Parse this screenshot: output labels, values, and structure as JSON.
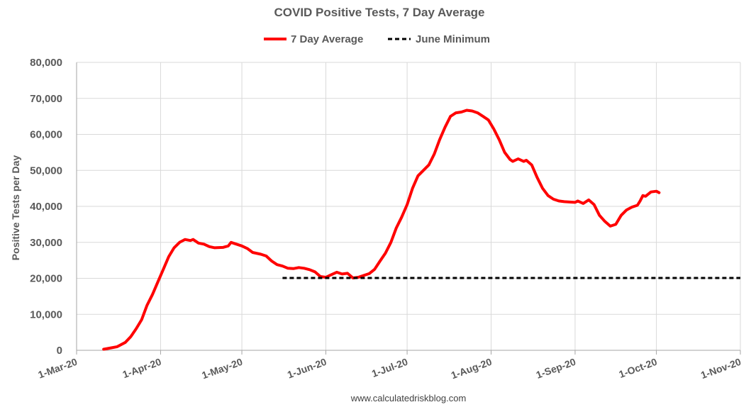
{
  "chart_data": {
    "type": "line",
    "title": "COVID Positive Tests, 7 Day Average",
    "ylabel": "Positive Tests per Day",
    "xlabel": "",
    "source": "www.calculatedriskblog.com",
    "ylim": [
      0,
      80000
    ],
    "yticks": [
      0,
      10000,
      20000,
      30000,
      40000,
      50000,
      60000,
      70000,
      80000
    ],
    "ytick_labels": [
      "0",
      "10,000",
      "20,000",
      "30,000",
      "40,000",
      "50,000",
      "60,000",
      "70,000",
      "80,000"
    ],
    "xlim": [
      "2020-03-01",
      "2020-11-01"
    ],
    "xticks": [
      "2020-03-01",
      "2020-04-01",
      "2020-05-01",
      "2020-06-01",
      "2020-07-01",
      "2020-08-01",
      "2020-09-01",
      "2020-10-01",
      "2020-11-01"
    ],
    "xtick_labels": [
      "1-Mar-20",
      "1-Apr-20",
      "1-May-20",
      "1-Jun-20",
      "1-Jul-20",
      "1-Aug-20",
      "1-Sep-20",
      "1-Oct-20",
      "1-Nov-20"
    ],
    "grid": true,
    "legend_position": "top",
    "series": [
      {
        "name": "7 Day Average",
        "color": "#ff0000",
        "style": "solid",
        "points": [
          [
            "2020-03-11",
            300
          ],
          [
            "2020-03-14",
            700
          ],
          [
            "2020-03-16",
            1000
          ],
          [
            "2020-03-19",
            2200
          ],
          [
            "2020-03-21",
            3800
          ],
          [
            "2020-03-23",
            6000
          ],
          [
            "2020-03-25",
            8500
          ],
          [
            "2020-03-27",
            12500
          ],
          [
            "2020-03-29",
            15500
          ],
          [
            "2020-03-31",
            19000
          ],
          [
            "2020-04-02",
            22500
          ],
          [
            "2020-04-04",
            26000
          ],
          [
            "2020-04-06",
            28500
          ],
          [
            "2020-04-08",
            30000
          ],
          [
            "2020-04-10",
            30800
          ],
          [
            "2020-04-12",
            30500
          ],
          [
            "2020-04-13",
            30800
          ],
          [
            "2020-04-15",
            29800
          ],
          [
            "2020-04-17",
            29500
          ],
          [
            "2020-04-19",
            28800
          ],
          [
            "2020-04-21",
            28500
          ],
          [
            "2020-04-24",
            28600
          ],
          [
            "2020-04-26",
            29000
          ],
          [
            "2020-04-27",
            30000
          ],
          [
            "2020-04-29",
            29500
          ],
          [
            "2020-05-01",
            29000
          ],
          [
            "2020-05-03",
            28300
          ],
          [
            "2020-05-05",
            27200
          ],
          [
            "2020-05-08",
            26700
          ],
          [
            "2020-05-10",
            26200
          ],
          [
            "2020-05-12",
            24800
          ],
          [
            "2020-05-14",
            23800
          ],
          [
            "2020-05-16",
            23400
          ],
          [
            "2020-05-18",
            22800
          ],
          [
            "2020-05-20",
            22700
          ],
          [
            "2020-05-22",
            23000
          ],
          [
            "2020-05-24",
            22800
          ],
          [
            "2020-05-26",
            22400
          ],
          [
            "2020-05-28",
            21800
          ],
          [
            "2020-05-30",
            20500
          ],
          [
            "2020-06-01",
            20300
          ],
          [
            "2020-06-03",
            21000
          ],
          [
            "2020-06-05",
            21700
          ],
          [
            "2020-06-07",
            21200
          ],
          [
            "2020-06-09",
            21400
          ],
          [
            "2020-06-11",
            20100
          ],
          [
            "2020-06-13",
            20300
          ],
          [
            "2020-06-15",
            20800
          ],
          [
            "2020-06-17",
            21300
          ],
          [
            "2020-06-19",
            22500
          ],
          [
            "2020-06-21",
            24800
          ],
          [
            "2020-06-23",
            27000
          ],
          [
            "2020-06-25",
            30000
          ],
          [
            "2020-06-27",
            34000
          ],
          [
            "2020-06-29",
            37000
          ],
          [
            "2020-07-01",
            40500
          ],
          [
            "2020-07-03",
            45000
          ],
          [
            "2020-07-05",
            48500
          ],
          [
            "2020-07-07",
            50000
          ],
          [
            "2020-07-09",
            51500
          ],
          [
            "2020-07-11",
            54500
          ],
          [
            "2020-07-13",
            58500
          ],
          [
            "2020-07-15",
            62000
          ],
          [
            "2020-07-17",
            65000
          ],
          [
            "2020-07-19",
            66000
          ],
          [
            "2020-07-21",
            66200
          ],
          [
            "2020-07-23",
            66700
          ],
          [
            "2020-07-25",
            66500
          ],
          [
            "2020-07-27",
            66000
          ],
          [
            "2020-07-29",
            65000
          ],
          [
            "2020-07-31",
            64000
          ],
          [
            "2020-08-02",
            61500
          ],
          [
            "2020-08-04",
            58500
          ],
          [
            "2020-08-06",
            55000
          ],
          [
            "2020-08-08",
            53000
          ],
          [
            "2020-08-09",
            52500
          ],
          [
            "2020-08-11",
            53200
          ],
          [
            "2020-08-13",
            52500
          ],
          [
            "2020-08-14",
            52800
          ],
          [
            "2020-08-16",
            51500
          ],
          [
            "2020-08-18",
            48000
          ],
          [
            "2020-08-20",
            45000
          ],
          [
            "2020-08-22",
            43000
          ],
          [
            "2020-08-24",
            42000
          ],
          [
            "2020-08-26",
            41500
          ],
          [
            "2020-08-28",
            41300
          ],
          [
            "2020-08-30",
            41200
          ],
          [
            "2020-09-01",
            41100
          ],
          [
            "2020-09-02",
            41500
          ],
          [
            "2020-09-04",
            40800
          ],
          [
            "2020-09-06",
            41800
          ],
          [
            "2020-09-08",
            40500
          ],
          [
            "2020-09-10",
            37500
          ],
          [
            "2020-09-12",
            35800
          ],
          [
            "2020-09-14",
            34500
          ],
          [
            "2020-09-16",
            35000
          ],
          [
            "2020-09-18",
            37500
          ],
          [
            "2020-09-20",
            39000
          ],
          [
            "2020-09-22",
            39800
          ],
          [
            "2020-09-24",
            40300
          ],
          [
            "2020-09-25",
            41500
          ],
          [
            "2020-09-26",
            43000
          ],
          [
            "2020-09-27",
            42800
          ],
          [
            "2020-09-29",
            44000
          ],
          [
            "2020-10-01",
            44200
          ],
          [
            "2020-10-02",
            43800
          ]
        ]
      },
      {
        "name": "June Minimum",
        "color": "#000000",
        "style": "dashed",
        "points": [
          [
            "2020-05-16",
            20100
          ],
          [
            "2020-11-01",
            20100
          ]
        ]
      }
    ]
  }
}
